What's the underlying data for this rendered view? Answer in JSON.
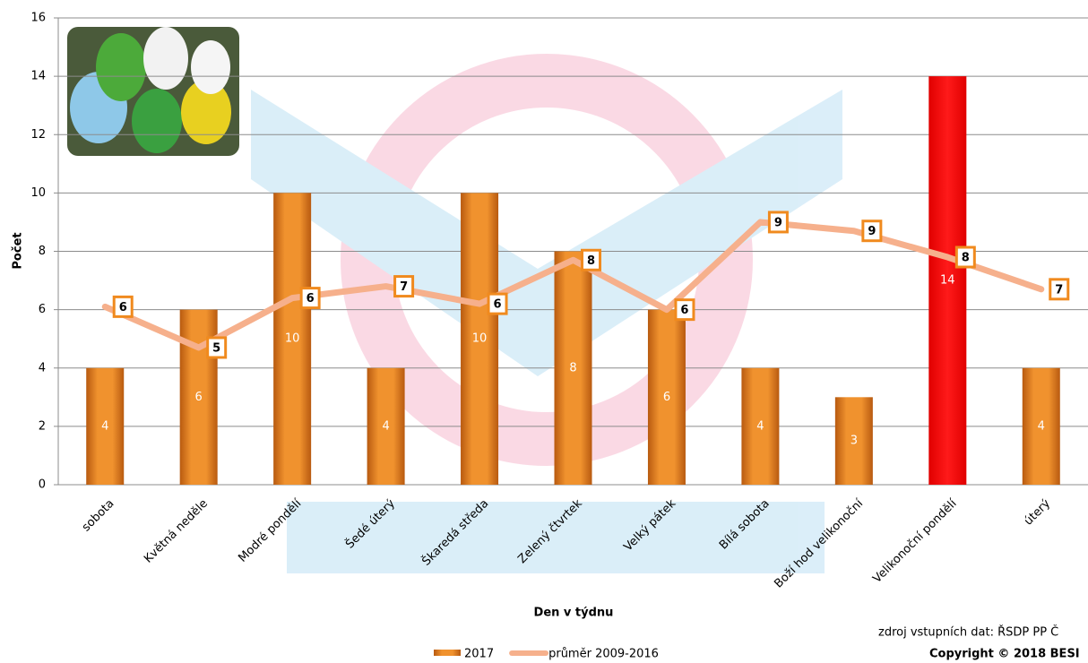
{
  "chart_data": {
    "type": "bar",
    "x_label": "Den v týdnu",
    "y_label": "Počet",
    "categories": [
      "sobota",
      "Květná neděle",
      "Modré pondělí",
      "Šedé úterý",
      "Škaredá středa",
      "Zelený čtvrtek",
      "Velký pátek",
      "Bílá sobota",
      "Boží hod velikonoční",
      "Velikonoční pondělí",
      "úterý"
    ],
    "series": [
      {
        "name": "2017",
        "type": "bar",
        "color": "#e8801e",
        "colors": [
          "#e8801e",
          "#e8801e",
          "#e8801e",
          "#e8801e",
          "#e8801e",
          "#e8801e",
          "#e8801e",
          "#e8801e",
          "#e8801e",
          "#ff0000",
          "#e8801e"
        ],
        "values": [
          4,
          6,
          10,
          4,
          10,
          8,
          6,
          4,
          3,
          14,
          4
        ]
      },
      {
        "name": "průměr 2009-2016",
        "type": "line",
        "color": "#f6b08c",
        "values": [
          6.1,
          4.7,
          6.4,
          6.8,
          6.2,
          7.7,
          6.0,
          9.0,
          8.7,
          7.8,
          6.7
        ],
        "value_labels": [
          "6",
          "5",
          "6",
          "7",
          "6",
          "8",
          "6",
          "9",
          "9",
          "8",
          "7"
        ]
      }
    ],
    "ylim": [
      0,
      16
    ],
    "yticks": [
      0,
      2,
      4,
      6,
      8,
      10,
      12,
      14,
      16
    ],
    "grid": true,
    "legend": "bottom",
    "annotations": [
      "zdroj vstupních dat: ŘSDP PP Č",
      "Copyright © 2018 BESI"
    ]
  }
}
